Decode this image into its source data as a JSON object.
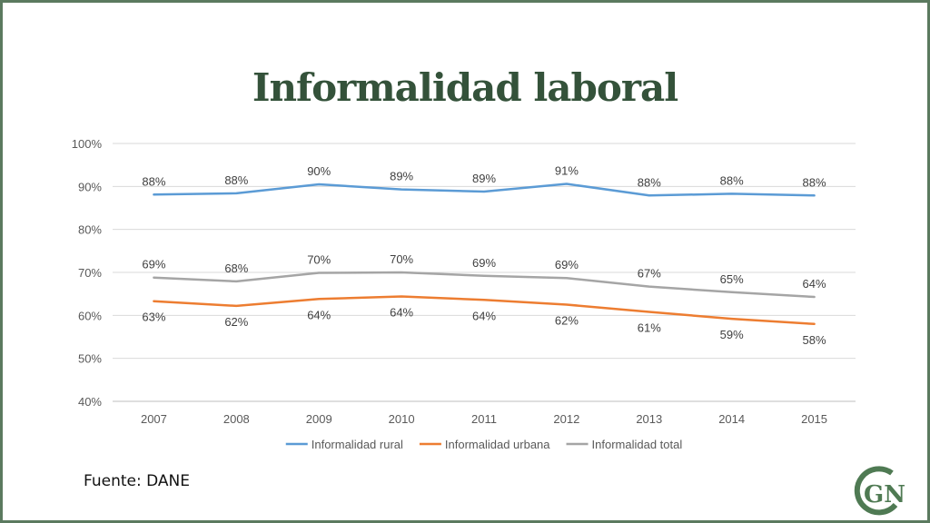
{
  "slide": {
    "title": "Informalidad laboral",
    "source": "Fuente: DANE",
    "logo_text": "GN",
    "colors": {
      "frame": "#5b7a5f",
      "title": "#34523a",
      "logo": "#4f7a53"
    }
  },
  "chart_data": {
    "type": "line",
    "title": "",
    "xlabel": "",
    "ylabel": "",
    "categories": [
      "2007",
      "2008",
      "2009",
      "2010",
      "2011",
      "2012",
      "2013",
      "2014",
      "2015"
    ],
    "ylim": [
      0.4,
      1.0
    ],
    "yticks": [
      0.4,
      0.5,
      0.6,
      0.7,
      0.8,
      0.9,
      1.0
    ],
    "ytick_labels": [
      "40%",
      "50%",
      "60%",
      "70%",
      "80%",
      "90%",
      "100%"
    ],
    "grid": true,
    "legend_position": "bottom",
    "series": [
      {
        "name": "Informalidad rural",
        "color": "#5b9bd5",
        "values": [
          0.881,
          0.884,
          0.905,
          0.893,
          0.888,
          0.906,
          0.879,
          0.883,
          0.879
        ],
        "labels": [
          "88%",
          "88%",
          "90%",
          "89%",
          "89%",
          "91%",
          "88%",
          "88%",
          "88%"
        ]
      },
      {
        "name": "Informalidad urbana",
        "color": "#ed7d31",
        "values": [
          0.633,
          0.622,
          0.638,
          0.644,
          0.636,
          0.625,
          0.608,
          0.592,
          0.58
        ],
        "labels": [
          "63%",
          "62%",
          "64%",
          "64%",
          "64%",
          "62%",
          "61%",
          "59%",
          "58%"
        ]
      },
      {
        "name": "Informalidad total",
        "color": "#a5a5a5",
        "values": [
          0.688,
          0.679,
          0.699,
          0.7,
          0.692,
          0.687,
          0.667,
          0.654,
          0.643
        ],
        "labels": [
          "69%",
          "68%",
          "70%",
          "70%",
          "69%",
          "69%",
          "67%",
          "65%",
          "64%"
        ]
      }
    ]
  }
}
